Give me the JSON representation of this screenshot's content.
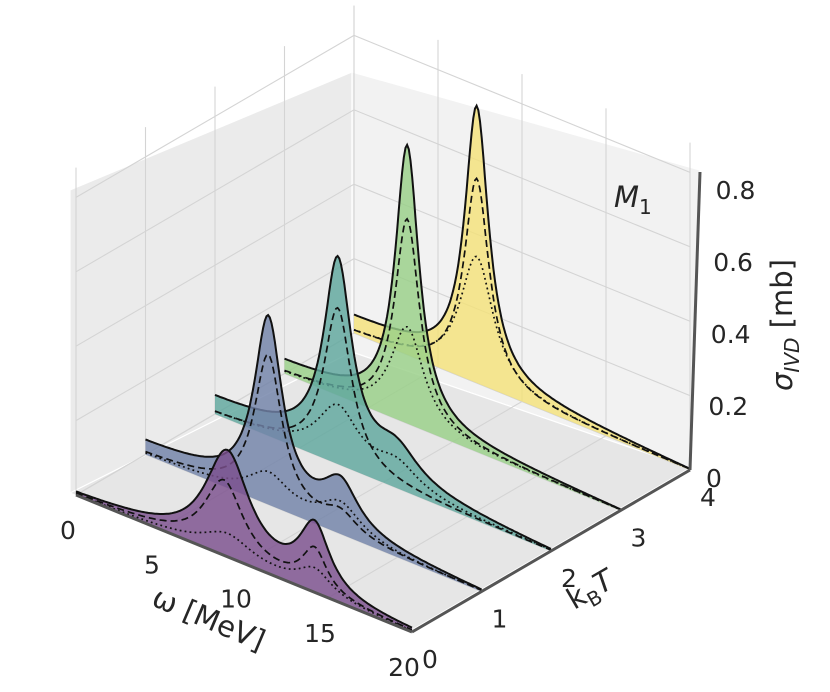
{
  "chart_data": {
    "type": "area",
    "annotation": "M",
    "annotation_sub": "1",
    "xlabel": "ω [MeV]",
    "ylabel": "k_B T",
    "zlabel": "σ_IVD [mb]",
    "xlim": [
      0,
      20
    ],
    "ylim": [
      0,
      4
    ],
    "zlim": [
      0,
      0.8
    ],
    "x_ticks": [
      "0",
      "5",
      "10",
      "15",
      "20"
    ],
    "y_ticks": [
      "0",
      "1",
      "2",
      "3",
      "4"
    ],
    "z_ticks": [
      "0",
      "0.2",
      "0.4",
      "0.6",
      "0.8"
    ],
    "grid": true,
    "curve_styles": [
      "solid",
      "dashed",
      "dotted"
    ],
    "series": [
      {
        "kBT": 0,
        "color": "#7b4f8e",
        "total": {
          "peaks": [
            [
              9.0,
              0.28,
              1.6
            ],
            [
              14.2,
              0.17,
              1.1
            ]
          ],
          "base": 0.0
        },
        "dashed": {
          "peaks": [
            [
              8.8,
              0.2,
              1.4
            ],
            [
              14.2,
              0.11,
              0.9
            ]
          ]
        },
        "dotted": {
          "peaks": [
            [
              9.0,
              0.06,
              1.8
            ],
            [
              14.2,
              0.06,
              1.2
            ]
          ]
        }
      },
      {
        "kBT": 1,
        "color": "#7282a8",
        "total": {
          "peaks": [
            [
              7.3,
              0.48,
              1.0
            ],
            [
              11.6,
              0.12,
              1.3
            ]
          ],
          "base": 0.03
        },
        "dashed": {
          "peaks": [
            [
              7.3,
              0.4,
              1.0
            ],
            [
              11.6,
              0.05,
              1.2
            ]
          ]
        },
        "dotted": {
          "peaks": [
            [
              7.3,
              0.08,
              1.5
            ],
            [
              11.6,
              0.08,
              1.5
            ]
          ]
        }
      },
      {
        "kBT": 2,
        "color": "#5fa79e",
        "total": {
          "peaks": [
            [
              7.3,
              0.52,
              1.0
            ],
            [
              10.8,
              0.08,
              1.6
            ]
          ],
          "base": 0.04
        },
        "dashed": {
          "peaks": [
            [
              7.3,
              0.42,
              1.0
            ]
          ]
        },
        "dotted": {
          "peaks": [
            [
              7.3,
              0.15,
              1.5
            ],
            [
              10.8,
              0.06,
              1.6
            ]
          ]
        }
      },
      {
        "kBT": 3,
        "color": "#98cf88",
        "total": {
          "peaks": [
            [
              7.3,
              0.73,
              0.85
            ]
          ],
          "base": 0.03
        },
        "dashed": {
          "peaks": [
            [
              7.3,
              0.55,
              0.9
            ]
          ]
        },
        "dotted": {
          "peaks": [
            [
              7.3,
              0.26,
              1.2
            ]
          ]
        }
      },
      {
        "kBT": 4,
        "color": "#f4e27a",
        "total": {
          "peaks": [
            [
              7.3,
              0.72,
              0.85
            ]
          ],
          "base": 0.04
        },
        "dashed": {
          "peaks": [
            [
              7.3,
              0.55,
              0.9
            ]
          ]
        },
        "dotted": {
          "peaks": [
            [
              7.3,
              0.34,
              1.2
            ]
          ]
        }
      }
    ]
  }
}
